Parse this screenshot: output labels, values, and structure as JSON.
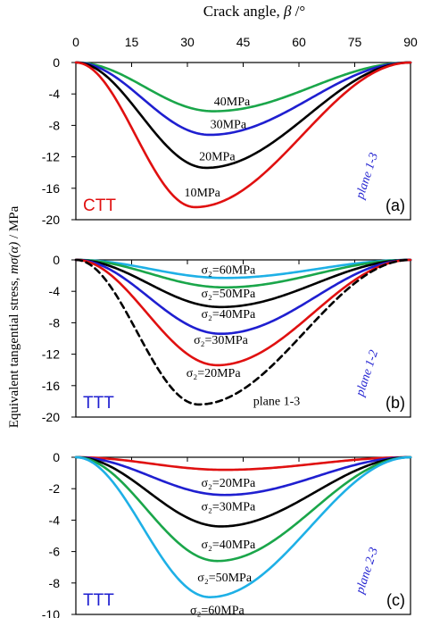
{
  "figure": {
    "top_axis_label_text": "Crack angle, ",
    "top_axis_label_symbol": "β",
    "top_axis_label_unit": " /°",
    "y_axis_label_text": "Equivalent tangential stress,  ",
    "y_axis_label_symbol": "mσ(α)",
    "y_axis_label_unit": " / MPa",
    "x_ticks": [
      "0",
      "15",
      "30",
      "45",
      "60",
      "75",
      "90"
    ]
  },
  "chart_data": [
    {
      "type": "line",
      "panel_label": "(a)",
      "case_label": "CTT",
      "case_color": "#e01010",
      "plane_label": "plane 1-3",
      "plane_color": "#1f1fd0",
      "xlim": [
        0,
        90
      ],
      "ylim": [
        -20,
        0
      ],
      "yticks": [
        "0",
        "-4",
        "-8",
        "-12",
        "-16",
        "-20"
      ],
      "series": [
        {
          "name": "40MPa",
          "color": "#1aa64a",
          "dash": false,
          "min_x": 37,
          "min_y": -6.2,
          "label_x": 42,
          "label_y": -4.9
        },
        {
          "name": "30MPa",
          "color": "#1f1fd0",
          "dash": false,
          "min_x": 36,
          "min_y": -9.2,
          "label_x": 41,
          "label_y": -7.8
        },
        {
          "name": "20MPa",
          "color": "#000000",
          "dash": false,
          "min_x": 35,
          "min_y": -13.4,
          "label_x": 38,
          "label_y": -11.9
        },
        {
          "name": "10MPa",
          "color": "#e01010",
          "dash": false,
          "min_x": 32,
          "min_y": -18.4,
          "label_x": 34,
          "label_y": -16.5
        }
      ]
    },
    {
      "type": "line",
      "panel_label": "(b)",
      "case_label": "TTT",
      "case_color": "#1f1fd0",
      "plane_label": "plane 1-2",
      "plane_color": "#1f1fd0",
      "xlim": [
        0,
        90
      ],
      "ylim": [
        -20,
        0
      ],
      "yticks": [
        "0",
        "-4",
        "-8",
        "-12",
        "-16",
        "-20"
      ],
      "series": [
        {
          "name": "σ₂=60MPa",
          "color": "#1eb0e6",
          "dash": false,
          "min_x": 40,
          "min_y": -2.3,
          "label_x": 41,
          "label_y": -1.2
        },
        {
          "name": "σ₂=50MPa",
          "color": "#1aa64a",
          "dash": false,
          "min_x": 40,
          "min_y": -3.5,
          "label_x": 41,
          "label_y": -4.2
        },
        {
          "name": "σ₂=40MPa",
          "color": "#000000",
          "dash": false,
          "min_x": 39,
          "min_y": -6.0,
          "label_x": 41,
          "label_y": -6.8
        },
        {
          "name": "σ₂=30MPa",
          "color": "#1f1fd0",
          "dash": false,
          "min_x": 39,
          "min_y": -9.4,
          "label_x": 39,
          "label_y": -10.1
        },
        {
          "name": "σ₂=20MPa",
          "color": "#e01010",
          "dash": false,
          "min_x": 38,
          "min_y": -13.4,
          "label_x": 37,
          "label_y": -14.3
        },
        {
          "name": "plane 1-3",
          "color": "#000000",
          "dash": true,
          "min_x": 33,
          "min_y": -18.4,
          "label_x": 54,
          "label_y": -17.9
        }
      ]
    },
    {
      "type": "line",
      "panel_label": "(c)",
      "case_label": "TTT",
      "case_color": "#1f1fd0",
      "plane_label": "plane 2-3",
      "plane_color": "#1f1fd0",
      "xlim": [
        0,
        90
      ],
      "ylim": [
        -10,
        0
      ],
      "yticks": [
        "0",
        "-2",
        "-4",
        "-6",
        "-8",
        "-10"
      ],
      "series": [
        {
          "name": "σ₂=20MPa",
          "color": "#e01010",
          "dash": false,
          "min_x": 40,
          "min_y": -0.8,
          "label_x": 41,
          "label_y": -1.6
        },
        {
          "name": "σ₂=30MPa",
          "color": "#1f1fd0",
          "dash": false,
          "min_x": 40,
          "min_y": -2.4,
          "label_x": 41,
          "label_y": -3.1
        },
        {
          "name": "σ₂=40MPa",
          "color": "#000000",
          "dash": false,
          "min_x": 39,
          "min_y": -4.4,
          "label_x": 41,
          "label_y": -5.5
        },
        {
          "name": "σ₂=50MPa",
          "color": "#1aa64a",
          "dash": false,
          "min_x": 38,
          "min_y": -6.6,
          "label_x": 40,
          "label_y": -7.6
        },
        {
          "name": "σ₂=60MPa",
          "color": "#1eb0e6",
          "dash": false,
          "min_x": 36,
          "min_y": -8.9,
          "label_x": 38,
          "label_y": -9.7
        }
      ]
    }
  ]
}
